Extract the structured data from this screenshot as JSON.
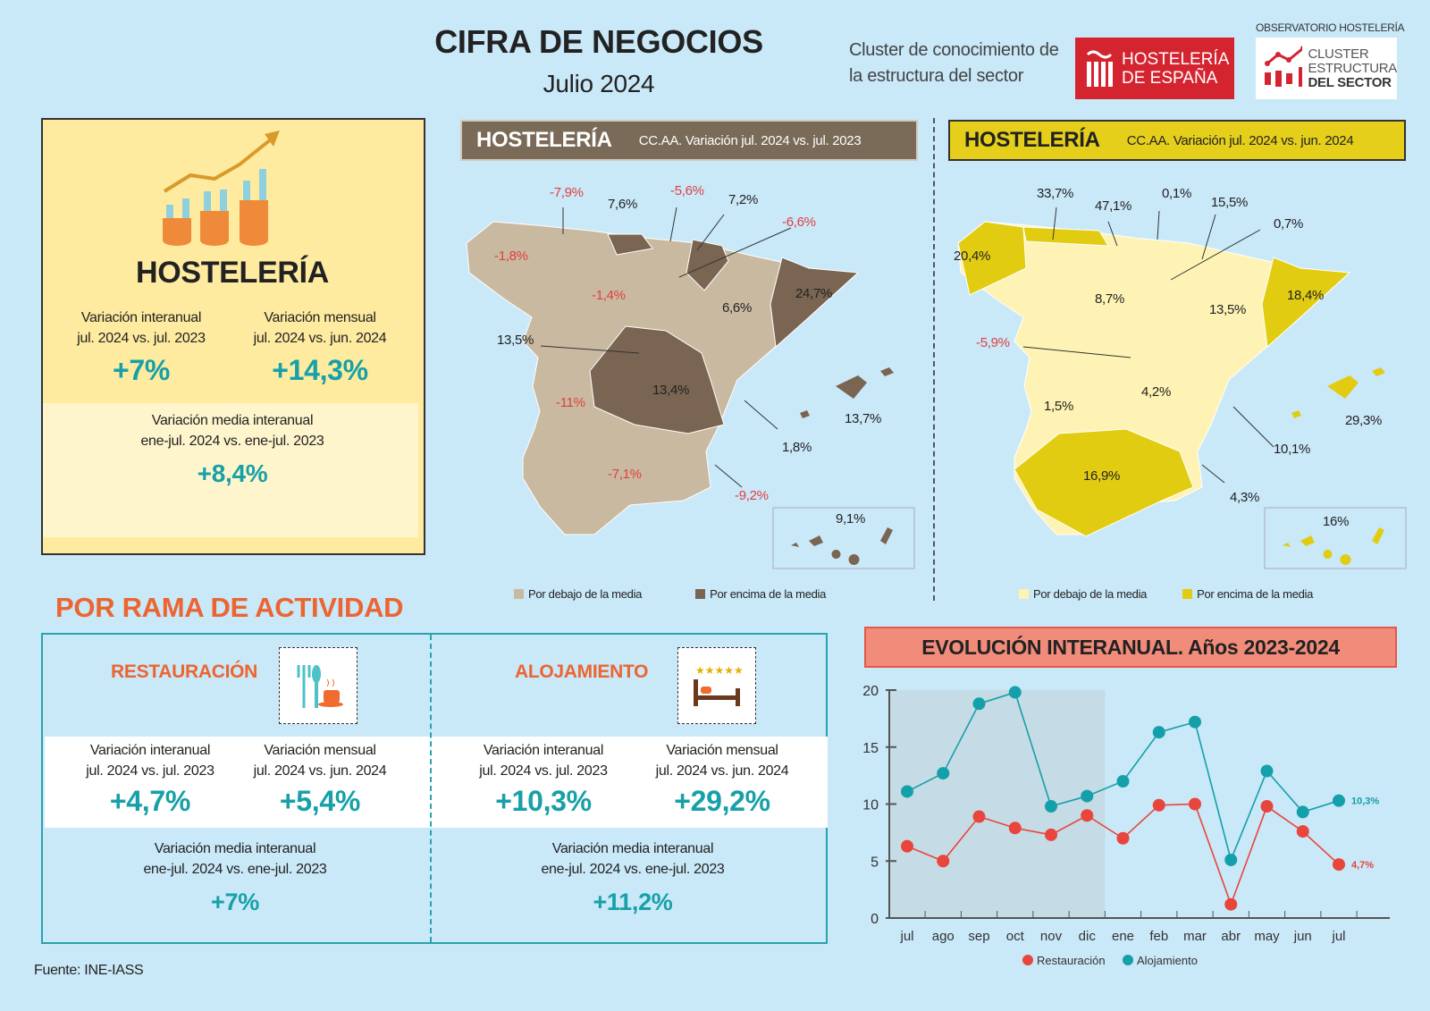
{
  "header": {
    "title": "CIFRA DE NEGOCIOS",
    "subtitle": "Julio 2024",
    "cluster_line1": "Cluster de conocimiento de",
    "cluster_line2": "la estructura del sector",
    "logo_hosteleria": [
      "HOSTELERÍA",
      "DE ESPAÑA"
    ],
    "observatorio": "OBSERVATORIO HOSTELERÍA",
    "logo_cluster": [
      "CLUSTER",
      "ESTRUCTURA",
      "DEL SECTOR"
    ]
  },
  "summary": {
    "title": "HOSTELERÍA",
    "interanual_label": [
      "Variación interanual",
      "jul. 2024 vs. jul. 2023"
    ],
    "interanual_value": "+7%",
    "mensual_label": [
      "Variación mensual",
      "jul. 2024 vs. jun. 2024"
    ],
    "mensual_value": "+14,3%",
    "media_label": [
      "Variación media interanual",
      "ene-jul. 2024 vs. ene-jul. 2023"
    ],
    "media_value": "+8,4%"
  },
  "map_left": {
    "title": "HOSTELERÍA",
    "subtitle": "CC.AA. Variación jul. 2024 vs. jul. 2023",
    "labels": [
      "-7,9%",
      "7,6%",
      "-5,6%",
      "7,2%",
      "-6,6%",
      "-1,8%",
      "-1,4%",
      "6,6%",
      "24,7%",
      "13,5%",
      "13,4%",
      "-11%",
      "13,7%",
      "1,8%",
      "-7,1%",
      "-9,2%",
      "9,1%"
    ],
    "legend": [
      "Por debajo de la media",
      "Por encima de la media"
    ],
    "colors": {
      "below": "#c9b9a0",
      "above": "#7a6552"
    }
  },
  "map_right": {
    "title": "HOSTELERÍA",
    "subtitle": "CC.AA. Variación jul. 2024 vs. jun. 2024",
    "labels": [
      "33,7%",
      "47,1%",
      "0,1%",
      "15,5%",
      "0,7%",
      "20,4%",
      "8,7%",
      "13,5%",
      "18,4%",
      "-5,9%",
      "1,5%",
      "4,2%",
      "29,3%",
      "10,1%",
      "16,9%",
      "4,3%",
      "16%"
    ],
    "legend": [
      "Por debajo de la media",
      "Por encima de la media"
    ],
    "colors": {
      "below": "#fef3b4",
      "above": "#e2cc12"
    }
  },
  "rama": {
    "title": "POR RAMA DE ACTIVIDAD",
    "restauracion": {
      "title": "RESTAURACIÓN",
      "interanual_label": [
        "Variación interanual",
        "jul. 2024 vs. jul. 2023"
      ],
      "interanual_value": "+4,7%",
      "mensual_label": [
        "Variación mensual",
        "jul. 2024 vs. jun. 2024"
      ],
      "mensual_value": "+5,4%",
      "media_label": [
        "Variación media interanual",
        "ene-jul. 2024 vs. ene-jul. 2023"
      ],
      "media_value": "+7%"
    },
    "alojamiento": {
      "title": "ALOJAMIENTO",
      "interanual_label": [
        "Variación interanual",
        "jul. 2024 vs. jul. 2023"
      ],
      "interanual_value": "+10,3%",
      "mensual_label": [
        "Variación mensual",
        "jul. 2024 vs. jun. 2024"
      ],
      "mensual_value": "+29,2%",
      "media_label": [
        "Variación media interanual",
        "ene-jul. 2024 vs. ene-jul. 2023"
      ],
      "media_value": "+11,2%"
    }
  },
  "chart_data": {
    "type": "line",
    "title": "EVOLUCIÓN INTERANUAL. Años 2023-2024",
    "categories": [
      "jul",
      "ago",
      "sep",
      "oct",
      "nov",
      "dic",
      "ene",
      "feb",
      "mar",
      "abr",
      "may",
      "jun",
      "jul"
    ],
    "ylim": [
      0,
      20
    ],
    "yticks": [
      0,
      5,
      10,
      15,
      20
    ],
    "grid": false,
    "legend": "bottom",
    "shaded_range": [
      "jul",
      "dic"
    ],
    "series": [
      {
        "name": "Restauración",
        "color": "#e8453c",
        "values": [
          6.3,
          5.0,
          8.9,
          7.9,
          7.3,
          9.0,
          7.0,
          9.9,
          10.0,
          1.2,
          9.8,
          7.6,
          4.7
        ],
        "end_label": "4,7%"
      },
      {
        "name": "Alojamiento",
        "color": "#14a0aa",
        "values": [
          11.1,
          12.7,
          18.8,
          19.8,
          9.8,
          10.7,
          12.0,
          16.3,
          17.2,
          5.1,
          12.9,
          9.3,
          10.3
        ],
        "end_label": "10,3%"
      }
    ]
  },
  "footer": {
    "source": "Fuente: INE-IASS"
  }
}
